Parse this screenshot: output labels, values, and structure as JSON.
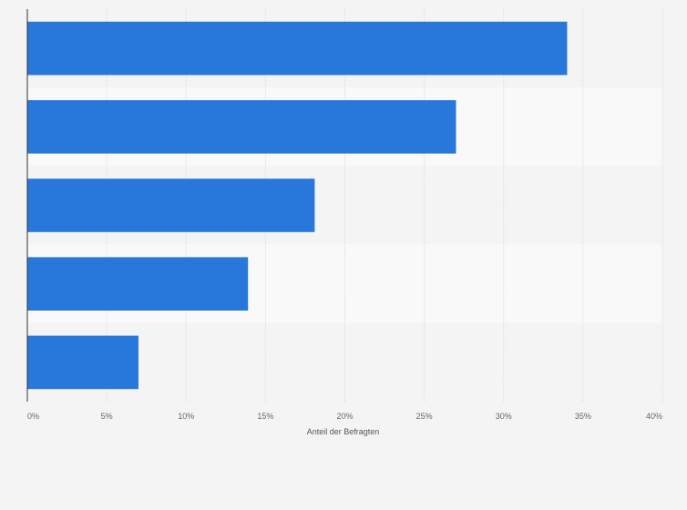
{
  "chart_data": {
    "type": "bar",
    "orientation": "horizontal",
    "categories": [
      "",
      "",
      "",
      "",
      ""
    ],
    "values": [
      34,
      27,
      18.1,
      13.9,
      7
    ],
    "xlabel": "Anteil der Befragten",
    "ylabel": "",
    "xlim": [
      0,
      40
    ],
    "x_ticks": [
      0,
      5,
      10,
      15,
      20,
      25,
      30,
      35,
      40
    ],
    "x_tick_labels": [
      "0%",
      "5%",
      "10%",
      "15%",
      "20%",
      "25%",
      "30%",
      "35%",
      "40%"
    ],
    "grid": true,
    "legend": "none",
    "colors": {
      "bar": "#2878dc",
      "band_light": "#f9f9f9",
      "band_dark": "#f4f4f4",
      "grid": "#dcdcdc",
      "axis": "#333333"
    }
  }
}
